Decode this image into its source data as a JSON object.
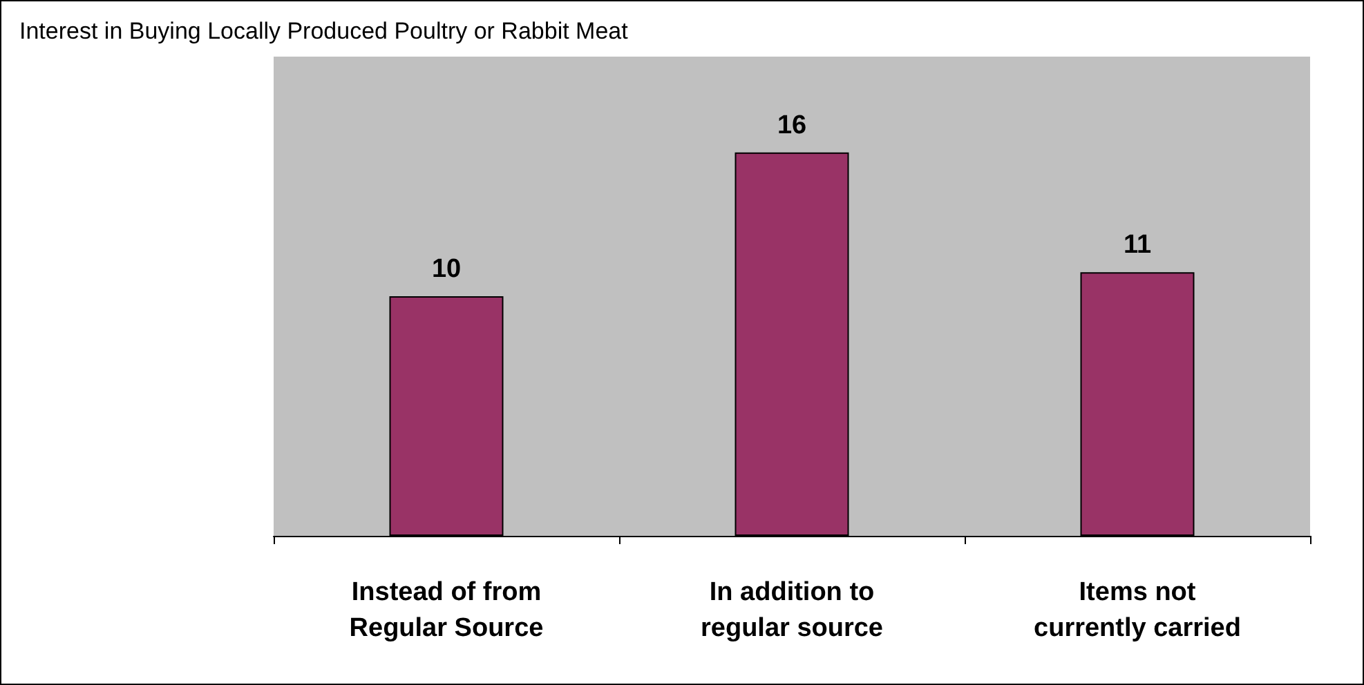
{
  "chart_data": {
    "type": "bar",
    "title": "Interest in Buying Locally Produced Poultry or Rabbit Meat",
    "categories": [
      "Instead of from\nRegular Source",
      "In addition to\nregular source",
      "Items not\ncurrently carried"
    ],
    "values": [
      10,
      16,
      11
    ],
    "color": "#993366",
    "ylim": [
      0,
      20
    ],
    "tick_labels": "x",
    "data_labels": true
  }
}
